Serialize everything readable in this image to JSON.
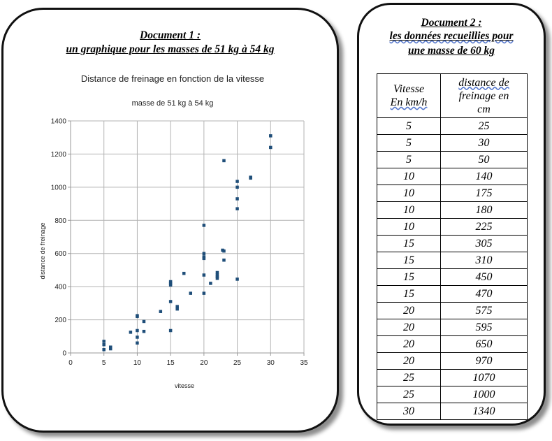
{
  "doc1": {
    "heading_line1": "Document 1 :",
    "heading_line2": "un graphique pour les masses de 51 kg à 54 kg"
  },
  "doc2": {
    "heading_line1": "Document 2 :",
    "heading_line2": "les données recueillies pour",
    "heading_line3": "une masse de 60 kg",
    "table": {
      "col1_header_line1": "Vitesse",
      "col1_header_line2": "En  km/h",
      "col2_header_line1": "distance de",
      "col2_header_line2": "freinage en",
      "col2_header_line3": "cm",
      "rows": [
        [
          "5",
          "25"
        ],
        [
          "5",
          "30"
        ],
        [
          "5",
          "50"
        ],
        [
          "10",
          "140"
        ],
        [
          "10",
          "175"
        ],
        [
          "10",
          "180"
        ],
        [
          "10",
          "225"
        ],
        [
          "15",
          "305"
        ],
        [
          "15",
          "310"
        ],
        [
          "15",
          "450"
        ],
        [
          "15",
          "470"
        ],
        [
          "20",
          "575"
        ],
        [
          "20",
          "595"
        ],
        [
          "20",
          "650"
        ],
        [
          "20",
          "970"
        ],
        [
          "25",
          "1070"
        ],
        [
          "25",
          "1000"
        ],
        [
          "30",
          "1340"
        ]
      ]
    }
  },
  "chart_data": {
    "type": "scatter",
    "title": "Distance de freinage en fonction de la vitesse",
    "subtitle": "masse de 51 kg à 54 kg",
    "xlabel": "vitesse",
    "ylabel": "distance de freinage",
    "xlim": [
      0,
      35
    ],
    "ylim": [
      0,
      1400
    ],
    "xticks": [
      0,
      5,
      10,
      15,
      20,
      25,
      30,
      35
    ],
    "yticks": [
      0,
      200,
      400,
      600,
      800,
      1000,
      1200,
      1400
    ],
    "grid": true,
    "marker_color": "#1f4e79",
    "points": [
      [
        5,
        70
      ],
      [
        5,
        50
      ],
      [
        5,
        20
      ],
      [
        6,
        35
      ],
      [
        6,
        25
      ],
      [
        9,
        125
      ],
      [
        10,
        225
      ],
      [
        10,
        220
      ],
      [
        10,
        135
      ],
      [
        10,
        95
      ],
      [
        10,
        60
      ],
      [
        11,
        190
      ],
      [
        11,
        130
      ],
      [
        13.5,
        250
      ],
      [
        15,
        430
      ],
      [
        15,
        420
      ],
      [
        15,
        410
      ],
      [
        15,
        310
      ],
      [
        15,
        135
      ],
      [
        16,
        280
      ],
      [
        16,
        265
      ],
      [
        17,
        480
      ],
      [
        18,
        360
      ],
      [
        20,
        770
      ],
      [
        20,
        600
      ],
      [
        20,
        580
      ],
      [
        20,
        570
      ],
      [
        20,
        470
      ],
      [
        20,
        360
      ],
      [
        21,
        420
      ],
      [
        22,
        485
      ],
      [
        22,
        470
      ],
      [
        22,
        460
      ],
      [
        22,
        450
      ],
      [
        22.8,
        620
      ],
      [
        23,
        615
      ],
      [
        23,
        560
      ],
      [
        23,
        1160
      ],
      [
        25,
        1035
      ],
      [
        25,
        1000
      ],
      [
        25,
        930
      ],
      [
        25,
        870
      ],
      [
        25,
        445
      ],
      [
        27,
        1060
      ],
      [
        27,
        1055
      ],
      [
        30,
        1310
      ],
      [
        30,
        1240
      ]
    ]
  }
}
